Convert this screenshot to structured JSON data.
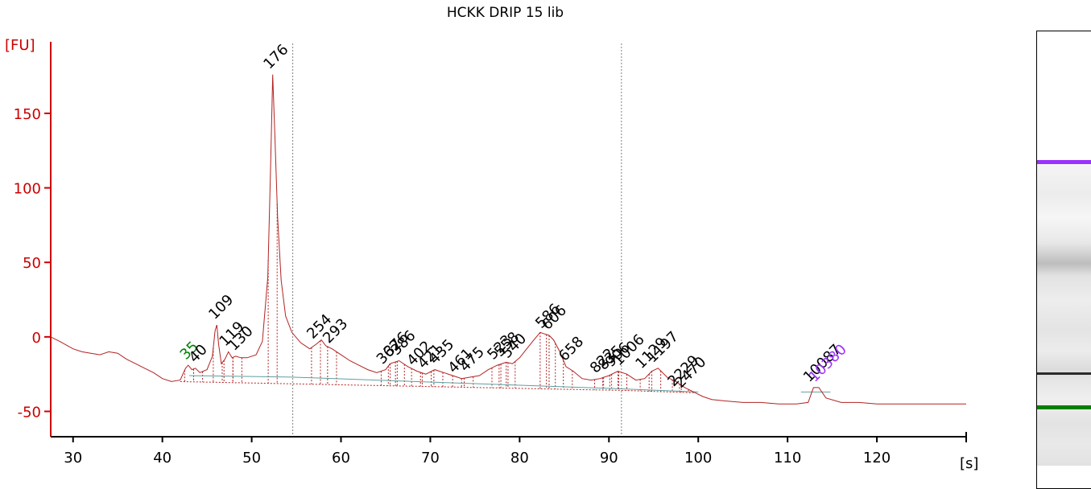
{
  "title": "HCKK DRIP 15 lib",
  "colors": {
    "trace": "#b22222",
    "axis": "#cc0000",
    "upper_marker": "#9b30ff",
    "lower_marker": "#008000",
    "baseline": "#5f9ea0",
    "divider": "#808080"
  },
  "chart_data": {
    "type": "line",
    "title": "HCKK DRIP 15 lib",
    "ylabel": "[FU]",
    "xlabel": "[s]",
    "xlim": [
      27.5,
      130
    ],
    "ylim": [
      -67,
      198
    ],
    "xticks": [
      30,
      40,
      50,
      60,
      70,
      80,
      90,
      100,
      110,
      120
    ],
    "yticks": [
      -50,
      0,
      50,
      100,
      150
    ],
    "region_dividers_s": [
      54.6,
      91.4
    ],
    "series": [
      {
        "x": [
          27.5,
          28.5,
          30,
          31,
          32,
          33,
          34,
          35,
          36,
          37,
          38,
          39,
          40,
          41,
          42,
          42.6,
          42.9,
          43.3,
          43.7,
          44.2,
          45,
          45.6,
          45.9,
          46.1,
          46.3,
          46.6,
          47,
          47.4,
          47.8,
          48.2,
          48.8,
          49.5,
          50.5,
          51.2,
          51.8,
          52.1,
          52.35,
          52.6,
          52.9,
          53.3,
          53.8,
          54.5,
          55.5,
          56.5,
          57.2,
          57.8,
          58.3,
          59,
          60,
          61,
          62,
          63,
          64,
          65,
          65.5,
          66.5,
          67.5,
          68.5,
          69.5,
          70.5,
          71.5,
          72.5,
          73.5,
          74.5,
          75.5,
          76.5,
          77.5,
          78.5,
          79.2,
          80,
          80.8,
          81.6,
          82.3,
          82.8,
          83.3,
          83.8,
          84.5,
          85.2,
          86,
          87,
          88,
          89,
          90,
          91,
          92,
          93,
          94,
          94.8,
          95.5,
          96.5,
          97.5,
          98.5,
          99.5,
          100.5,
          101.5,
          103,
          105,
          107,
          109,
          111,
          112.3,
          112.9,
          113.5,
          114.3,
          116,
          118,
          120,
          122,
          124,
          126,
          128,
          130
        ],
        "values": [
          0,
          -3,
          -8,
          -10,
          -11,
          -12,
          -10,
          -11,
          -15,
          -18,
          -21,
          -24,
          -28,
          -30,
          -29,
          -21,
          -19,
          -22,
          -21,
          -24,
          -22,
          -13,
          4,
          8,
          -5,
          -18,
          -15,
          -10,
          -14,
          -13,
          -14,
          -14,
          -12,
          -3,
          40,
          110,
          176,
          135,
          80,
          38,
          14,
          3,
          -4,
          -8,
          -5,
          -2,
          -6,
          -8,
          -12,
          -16,
          -19,
          -22,
          -24,
          -22,
          -18,
          -16,
          -20,
          -23,
          -25,
          -22,
          -24,
          -26,
          -28,
          -27,
          -26,
          -22,
          -19,
          -17,
          -18,
          -14,
          -8,
          -2,
          3,
          2,
          1,
          -2,
          -10,
          -20,
          -23,
          -28,
          -29,
          -28,
          -26,
          -23,
          -25,
          -29,
          -28,
          -23,
          -21,
          -27,
          -30,
          -34,
          -37,
          -40,
          -42,
          -43,
          -44,
          -44,
          -45,
          -45,
          -44,
          -34,
          -34,
          -41,
          -44,
          -44,
          -45,
          -45,
          -45,
          -45,
          -45,
          -45
        ]
      }
    ],
    "peaks": [
      {
        "label": "35",
        "x": 43.0,
        "y": -19,
        "marker": "lower"
      },
      {
        "label": "40",
        "x": 44.0,
        "y": -21
      },
      {
        "label": "109",
        "x": 46.2,
        "y": 8
      },
      {
        "label": "119",
        "x": 47.4,
        "y": -10
      },
      {
        "label": "130",
        "x": 48.4,
        "y": -13
      },
      {
        "label": "176",
        "x": 52.35,
        "y": 176
      },
      {
        "label": "254",
        "x": 57.2,
        "y": -5
      },
      {
        "label": "293",
        "x": 59.0,
        "y": -8
      },
      {
        "label": "362",
        "x": 65.0,
        "y": -22
      },
      {
        "label": "376",
        "x": 65.8,
        "y": -17
      },
      {
        "label": "386",
        "x": 66.6,
        "y": -16
      },
      {
        "label": "402",
        "x": 68.4,
        "y": -23
      },
      {
        "label": "421",
        "x": 69.6,
        "y": -25
      },
      {
        "label": "435",
        "x": 70.9,
        "y": -22
      },
      {
        "label": "461",
        "x": 73.0,
        "y": -28
      },
      {
        "label": "475",
        "x": 74.3,
        "y": -27
      },
      {
        "label": "523",
        "x": 77.4,
        "y": -19
      },
      {
        "label": "558",
        "x": 78.2,
        "y": -17
      },
      {
        "label": "540",
        "x": 79.0,
        "y": -18
      },
      {
        "label": "586",
        "x": 82.8,
        "y": 2
      },
      {
        "label": "606",
        "x": 83.5,
        "y": 1
      },
      {
        "label": "658",
        "x": 85.4,
        "y": -20
      },
      {
        "label": "822",
        "x": 88.9,
        "y": -28
      },
      {
        "label": "835",
        "x": 89.8,
        "y": -26
      },
      {
        "label": "906",
        "x": 90.6,
        "y": -24
      },
      {
        "label": "1006",
        "x": 91.5,
        "y": -23
      },
      {
        "label": "1129",
        "x": 94.0,
        "y": -25
      },
      {
        "label": "1197",
        "x": 95.3,
        "y": -21
      },
      {
        "label": "2229",
        "x": 97.6,
        "y": -37
      },
      {
        "label": "2470",
        "x": 98.4,
        "y": -38
      },
      {
        "label": "10087",
        "x": 112.8,
        "y": -34
      },
      {
        "label": "10380",
        "x": 113.4,
        "y": -34,
        "marker": "upper"
      }
    ]
  }
}
